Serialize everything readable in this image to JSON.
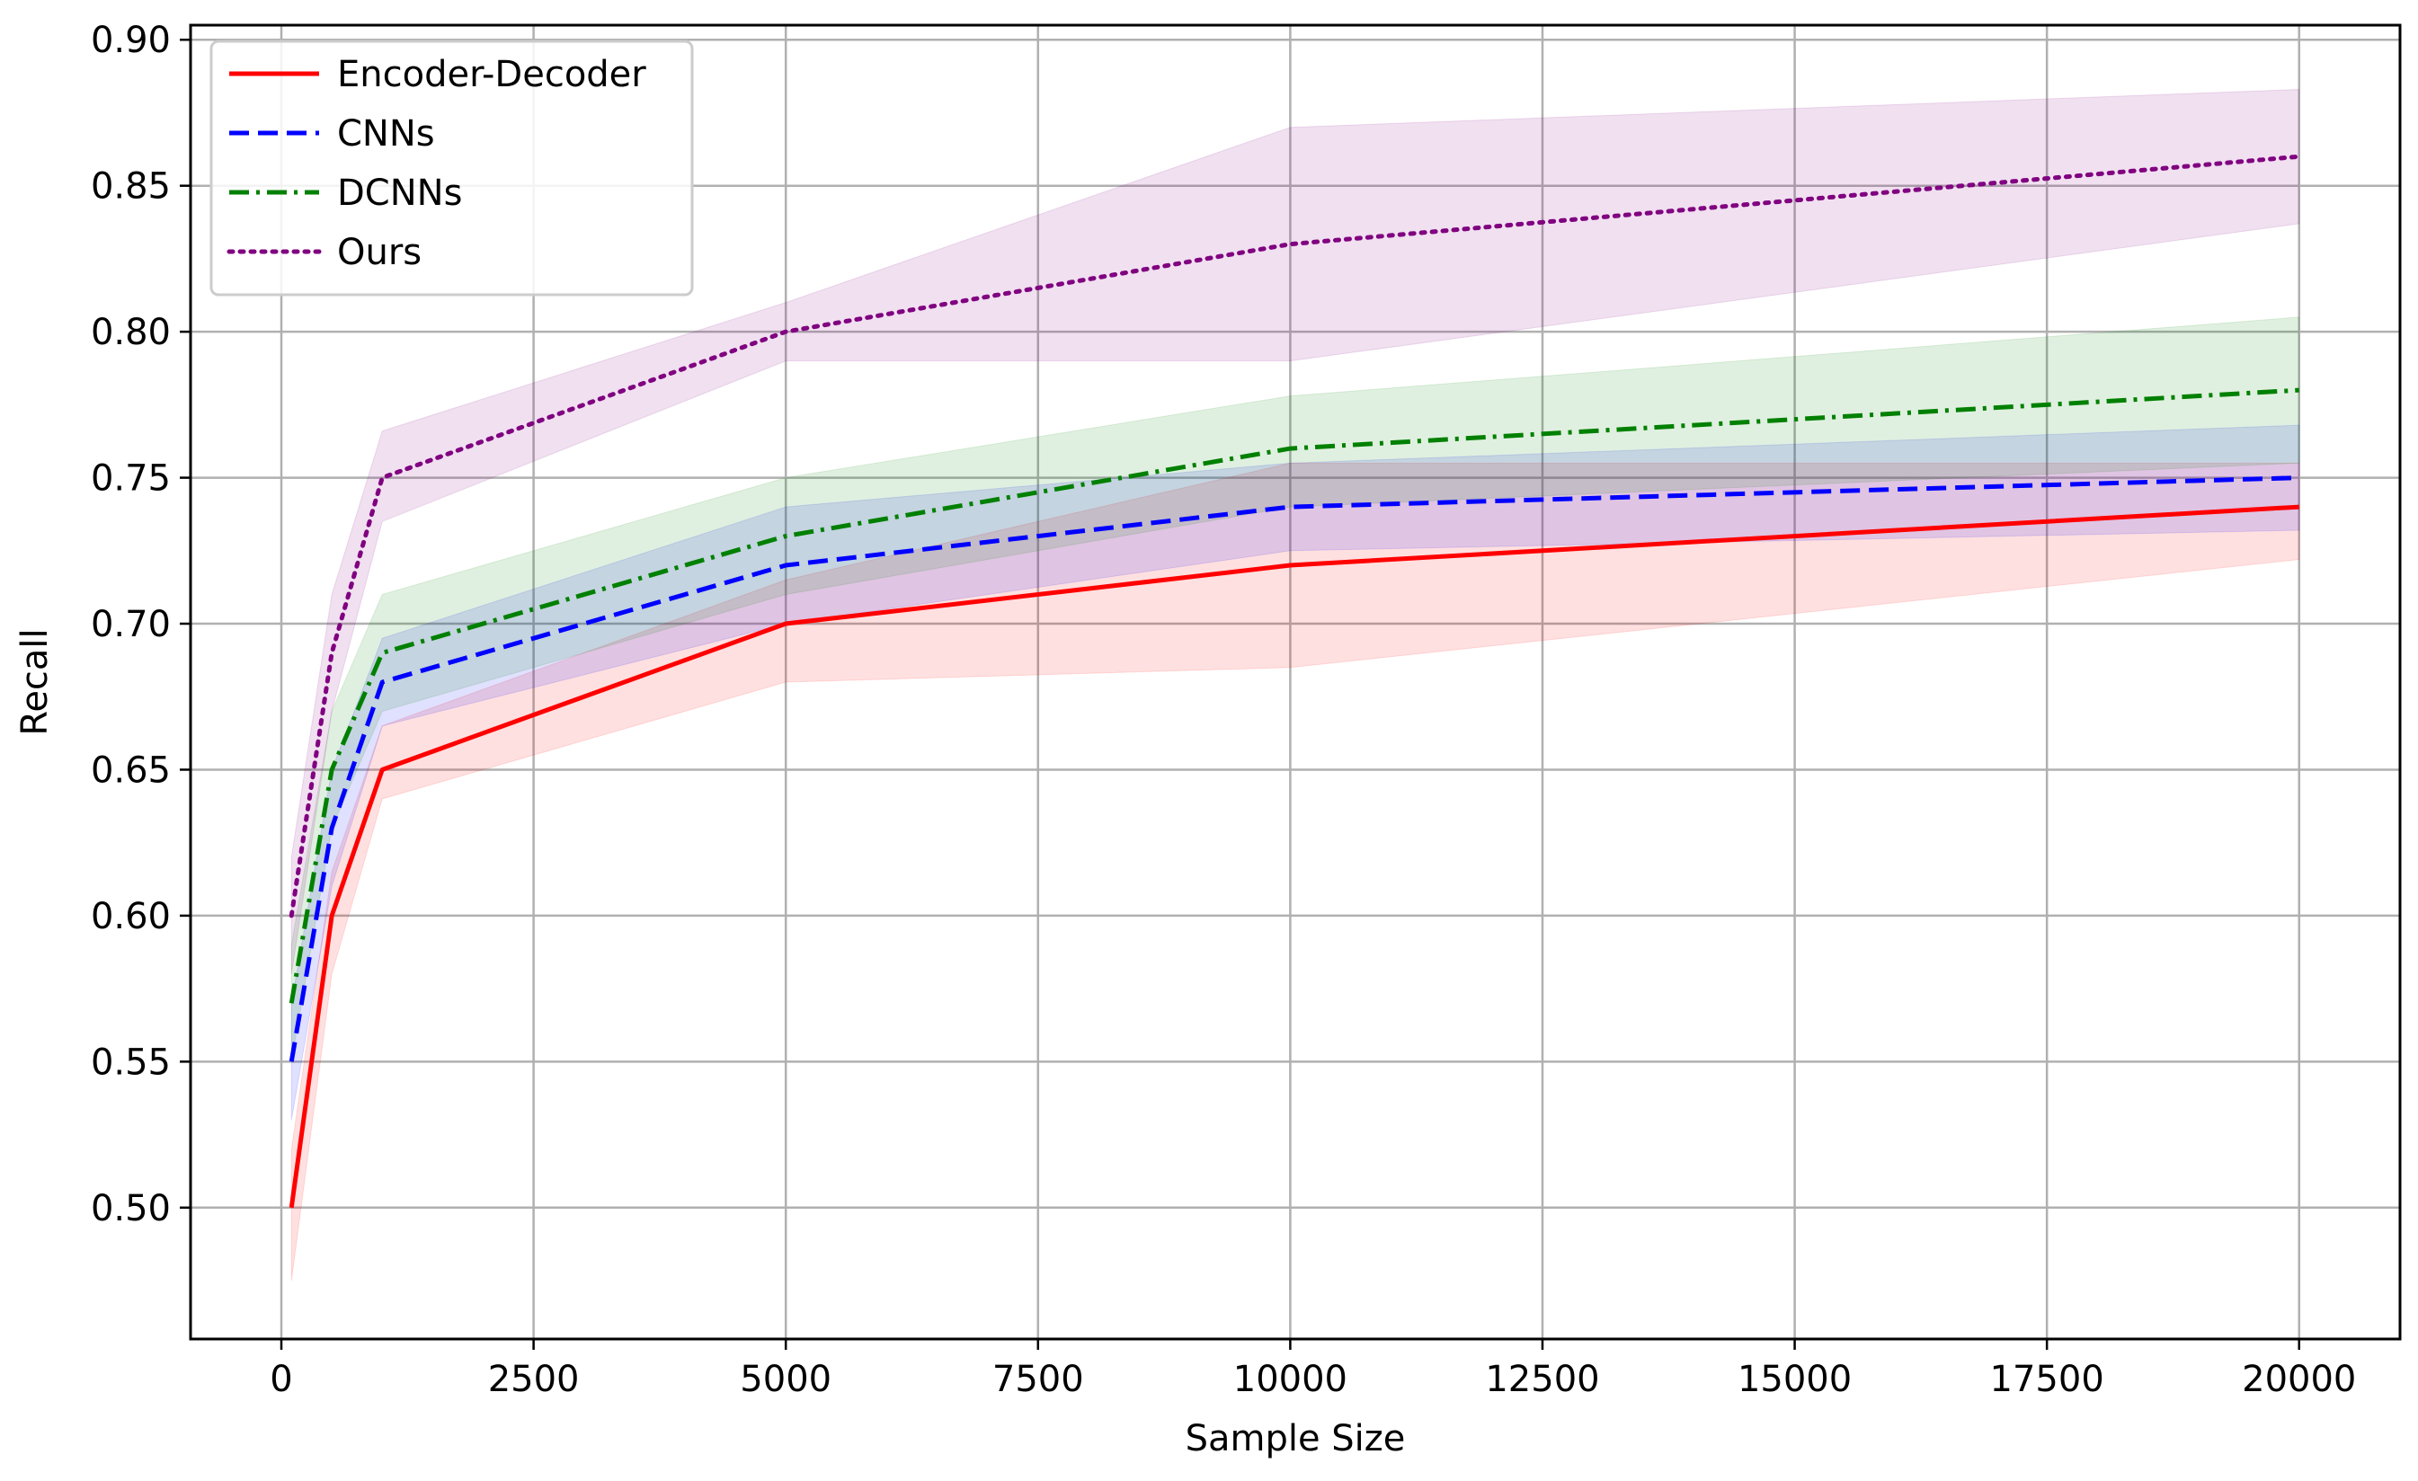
{
  "chart_data": {
    "type": "line",
    "title": "",
    "xlabel": "Sample Size",
    "ylabel": "Recall",
    "x": [
      100,
      500,
      1000,
      5000,
      10000,
      20000
    ],
    "xlim": [
      -900,
      21000
    ],
    "ylim": [
      0.455,
      0.905
    ],
    "xticks": [
      0,
      2500,
      5000,
      7500,
      10000,
      12500,
      15000,
      17500,
      20000
    ],
    "yticks": [
      0.5,
      0.55,
      0.6,
      0.65,
      0.7,
      0.75,
      0.8,
      0.85,
      0.9
    ],
    "ytick_labels": [
      "0.50",
      "0.55",
      "0.60",
      "0.65",
      "0.70",
      "0.75",
      "0.80",
      "0.85",
      "0.90"
    ],
    "xtick_labels": [
      "0",
      "2500",
      "5000",
      "7500",
      "10000",
      "12500",
      "15000",
      "17500",
      "20000"
    ],
    "grid": true,
    "legend_position": "top-left",
    "series": [
      {
        "name": "Encoder-Decoder",
        "color": "#ff0000",
        "style": "solid",
        "values": [
          0.5,
          0.6,
          0.65,
          0.7,
          0.72,
          0.74
        ],
        "lower": [
          0.475,
          0.58,
          0.64,
          0.68,
          0.685,
          0.722
        ],
        "upper": [
          0.52,
          0.615,
          0.665,
          0.715,
          0.755,
          0.755
        ]
      },
      {
        "name": "CNNs",
        "color": "#0000ff",
        "style": "dashed",
        "values": [
          0.55,
          0.63,
          0.68,
          0.72,
          0.74,
          0.75
        ],
        "lower": [
          0.53,
          0.61,
          0.665,
          0.7,
          0.725,
          0.732
        ],
        "upper": [
          0.57,
          0.65,
          0.695,
          0.74,
          0.755,
          0.768
        ]
      },
      {
        "name": "DCNNs",
        "color": "#008000",
        "style": "dashdot",
        "values": [
          0.57,
          0.65,
          0.69,
          0.73,
          0.76,
          0.78
        ],
        "lower": [
          0.55,
          0.63,
          0.67,
          0.71,
          0.74,
          0.755
        ],
        "upper": [
          0.59,
          0.67,
          0.71,
          0.75,
          0.778,
          0.805
        ]
      },
      {
        "name": "Ours",
        "color": "#800080",
        "style": "dotted",
        "values": [
          0.6,
          0.69,
          0.75,
          0.8,
          0.83,
          0.86
        ],
        "lower": [
          0.58,
          0.67,
          0.735,
          0.79,
          0.79,
          0.837
        ],
        "upper": [
          0.62,
          0.71,
          0.766,
          0.81,
          0.87,
          0.883
        ]
      }
    ]
  }
}
